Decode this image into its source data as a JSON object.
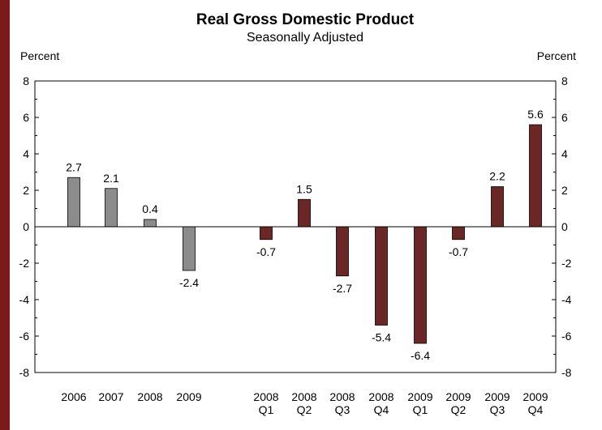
{
  "chart_data": {
    "type": "bar",
    "title": "Real Gross Domestic Product",
    "subtitle": "Seasonally Adjusted",
    "ylabel_left": "Percent",
    "ylabel_right": "Percent",
    "ylim": [
      -8,
      8
    ],
    "yticks": [
      8,
      6,
      4,
      2,
      0,
      -2,
      -4,
      -6,
      -8
    ],
    "grid": false,
    "legend": "none",
    "colors": {
      "annual": "#8c8c8c",
      "quarterly": "#6b2626"
    },
    "categories": [
      {
        "label": [
          "2006"
        ],
        "value": 2.7,
        "label_text": "2.7",
        "group": "annual"
      },
      {
        "label": [
          "2007"
        ],
        "value": 2.1,
        "label_text": "2.1",
        "group": "annual"
      },
      {
        "label": [
          "2008"
        ],
        "value": 0.4,
        "label_text": "0.4",
        "group": "annual"
      },
      {
        "label": [
          "2009"
        ],
        "value": -2.4,
        "label_text": "-2.4",
        "group": "annual"
      },
      {
        "label": [
          "2008",
          "Q1"
        ],
        "value": -0.7,
        "label_text": "-0.7",
        "group": "quarterly"
      },
      {
        "label": [
          "2008",
          "Q2"
        ],
        "value": 1.5,
        "label_text": "1.5",
        "group": "quarterly"
      },
      {
        "label": [
          "2008",
          "Q3"
        ],
        "value": -2.7,
        "label_text": "-2.7",
        "group": "quarterly"
      },
      {
        "label": [
          "2008",
          "Q4"
        ],
        "value": -5.4,
        "label_text": "-5.4",
        "group": "quarterly"
      },
      {
        "label": [
          "2009",
          "Q1"
        ],
        "value": -6.4,
        "label_text": "-6.4",
        "group": "quarterly"
      },
      {
        "label": [
          "2009",
          "Q2"
        ],
        "value": -0.7,
        "label_text": "-0.7",
        "group": "quarterly"
      },
      {
        "label": [
          "2009",
          "Q3"
        ],
        "value": 2.2,
        "label_text": "2.2",
        "group": "quarterly"
      },
      {
        "label": [
          "2009",
          "Q4"
        ],
        "value": 5.6,
        "label_text": "5.6",
        "group": "quarterly"
      }
    ]
  }
}
